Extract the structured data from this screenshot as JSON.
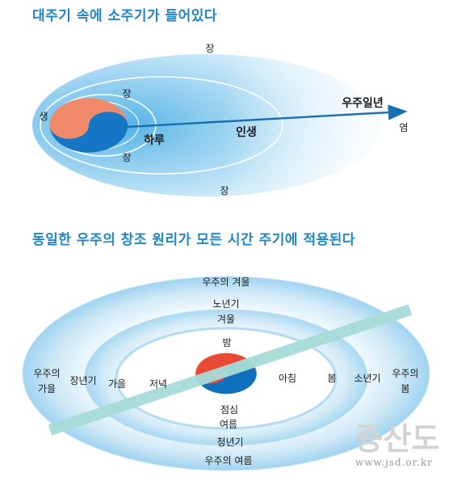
{
  "top": {
    "title": "대주기 속에 소주기가 들어있다",
    "labels": {
      "jang_top": "장",
      "jang_inner_top": "장",
      "saeng": "생",
      "universe_year": "우주일년",
      "yeom": "염",
      "day": "하루",
      "life": "인생",
      "jang_inner_bottom": "장",
      "jang_bottom": "장"
    }
  },
  "bottom": {
    "title": "동일한 우주의 창조 원리가 모든 시간 주기에 적용된다",
    "labels": {
      "universe_winter": "우주의 겨울",
      "old_age": "노년기",
      "winter": "겨울",
      "night": "밤",
      "universe_autumn_1": "우주의",
      "universe_autumn_2": "가을",
      "middle_age": "장년기",
      "autumn": "가을",
      "evening": "저녁",
      "morning": "아침",
      "spring": "봄",
      "youth": "소년기",
      "universe_spring_1": "우주의",
      "universe_spring_2": "봄",
      "noon": "점심",
      "summer": "여름",
      "young_adult": "청년기",
      "universe_summer": "우주의 여름"
    }
  },
  "watermark": {
    "title": "증산도",
    "url": "www.jsd.or.kr"
  },
  "colors": {
    "heading": "#1f86c4",
    "ring_blue": "#7fc4ea",
    "arrow": "#1a6fb3",
    "band": "#a6dcd8",
    "taeguk_red": "#e84a35",
    "taeguk_blue": "#0f70c0"
  }
}
